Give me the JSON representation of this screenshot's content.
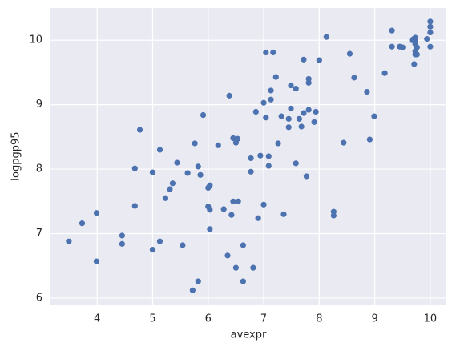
{
  "chart_data": {
    "type": "scatter",
    "x_label": "avexpr",
    "y_label": "logpgp95",
    "color": "#4c72b0",
    "grid": true,
    "xlim": [
      3.16,
      10.29
    ],
    "ylim": [
      5.9,
      10.5
    ],
    "xticks": [
      4,
      5,
      6,
      7,
      8,
      9,
      10
    ],
    "yticks": [
      6,
      7,
      8,
      9,
      10
    ],
    "x": [
      3.49,
      3.73,
      3.99,
      3.99,
      4.45,
      4.45,
      4.68,
      4.68,
      4.77,
      5.0,
      5.0,
      5.13,
      5.13,
      5.23,
      5.31,
      5.36,
      5.44,
      5.54,
      5.63,
      5.72,
      5.76,
      5.82,
      5.82,
      5.86,
      5.91,
      6.0,
      6.03,
      6.0,
      6.03,
      6.03,
      6.18,
      6.28,
      6.35,
      6.38,
      6.42,
      6.45,
      6.45,
      6.5,
      6.53,
      6.5,
      6.54,
      6.63,
      6.63,
      6.77,
      6.77,
      6.81,
      6.86,
      6.9,
      6.94,
      7.0,
      7.0,
      7.04,
      7.04,
      7.09,
      7.09,
      7.13,
      7.13,
      7.17,
      7.22,
      7.26,
      7.32,
      7.36,
      7.45,
      7.45,
      7.49,
      7.49,
      7.58,
      7.58,
      7.64,
      7.68,
      7.72,
      7.72,
      7.77,
      7.81,
      7.81,
      7.81,
      7.91,
      7.94,
      8.0,
      8.13,
      8.26,
      8.26,
      8.44,
      8.55,
      8.63,
      8.86,
      8.91,
      8.99,
      9.18,
      9.31,
      9.31,
      9.45,
      9.5,
      9.67,
      9.7,
      9.71,
      9.73,
      9.73,
      9.73,
      9.73,
      9.76,
      9.73,
      9.76,
      9.94,
      10.0,
      10.0,
      10.0,
      10.0
    ],
    "y": [
      6.88,
      7.16,
      7.32,
      6.57,
      6.97,
      6.84,
      8.01,
      7.43,
      8.61,
      7.95,
      6.75,
      8.3,
      6.88,
      7.55,
      7.69,
      7.78,
      8.1,
      6.82,
      7.94,
      6.12,
      8.4,
      6.26,
      8.04,
      7.91,
      8.84,
      7.71,
      7.75,
      7.42,
      7.37,
      7.07,
      8.37,
      7.38,
      6.66,
      9.14,
      7.29,
      7.5,
      8.48,
      8.41,
      8.47,
      6.47,
      7.5,
      6.82,
      6.26,
      8.17,
      7.96,
      6.47,
      8.89,
      7.24,
      8.21,
      9.03,
      7.45,
      9.81,
      8.8,
      8.2,
      8.05,
      9.08,
      9.22,
      9.81,
      9.43,
      8.4,
      8.82,
      7.3,
      8.78,
      8.65,
      8.94,
      9.3,
      9.25,
      8.09,
      8.78,
      8.66,
      8.87,
      9.7,
      7.89,
      9.4,
      9.34,
      8.92,
      8.73,
      8.89,
      9.69,
      10.05,
      7.34,
      7.28,
      8.41,
      9.79,
      9.42,
      9.2,
      8.46,
      8.82,
      9.49,
      10.15,
      9.9,
      9.9,
      9.89,
      10.0,
      10.02,
      9.63,
      9.98,
      9.83,
      9.78,
      9.94,
      9.89,
      10.04,
      9.78,
      10.02,
      10.29,
      10.21,
      10.12,
      9.9
    ]
  }
}
